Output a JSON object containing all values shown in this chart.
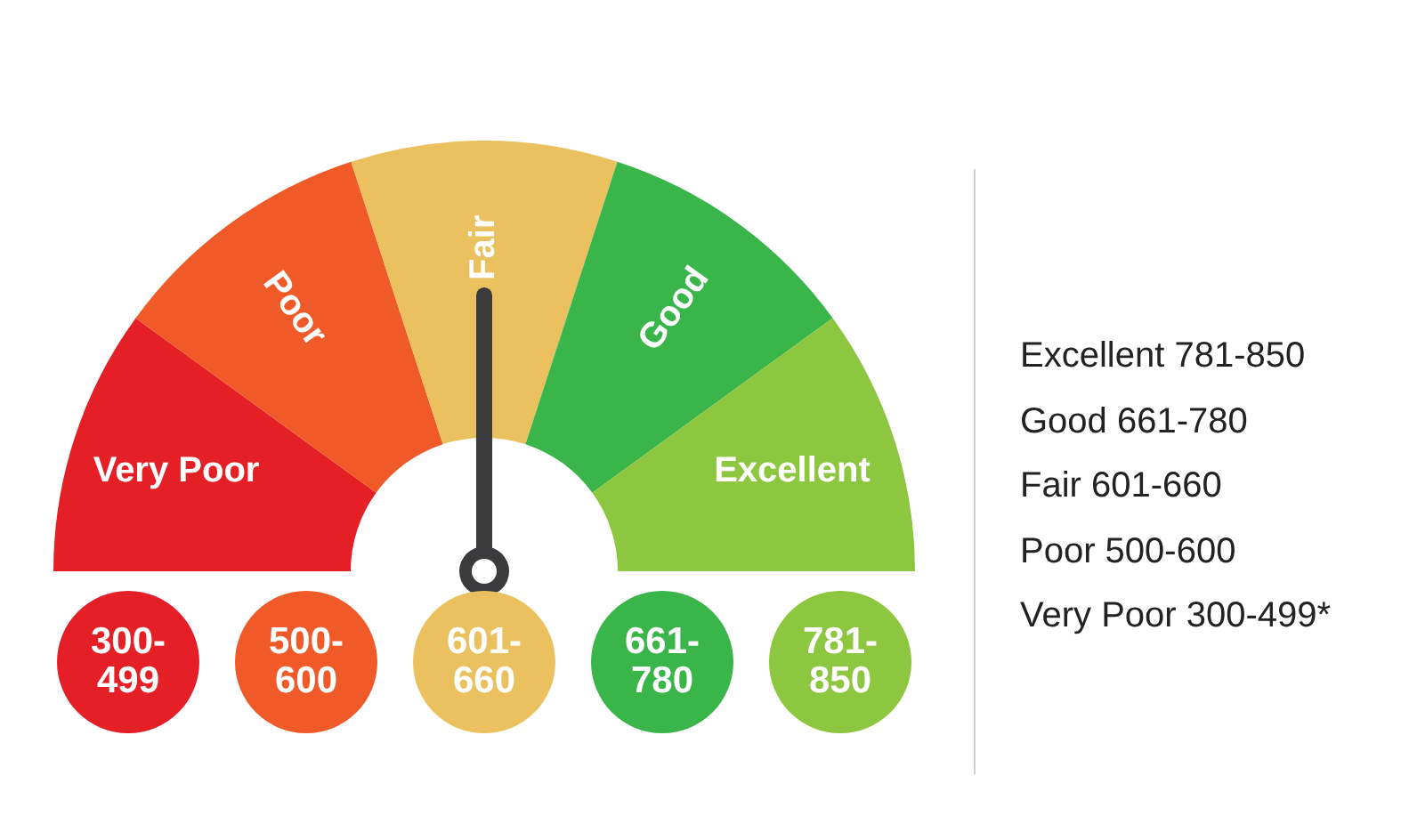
{
  "chart_data": {
    "type": "donut",
    "categories": [
      "Very Poor",
      "Poor",
      "Fair",
      "Good",
      "Excellent"
    ],
    "values": [
      20,
      20,
      20,
      20,
      20
    ],
    "colors": [
      "#e41f26",
      "#f05a28",
      "#ebc15f",
      "#3ab54a",
      "#8dc63f"
    ],
    "needle": "Fair",
    "legend": false,
    "annotations": [
      "300-499",
      "500-600",
      "601-660",
      "661-780",
      "781-850",
      "Excellent 781-850",
      "Good 661-780",
      "Fair 601-660",
      "Poor 500-600",
      "Very Poor 300-499*"
    ]
  }
}
